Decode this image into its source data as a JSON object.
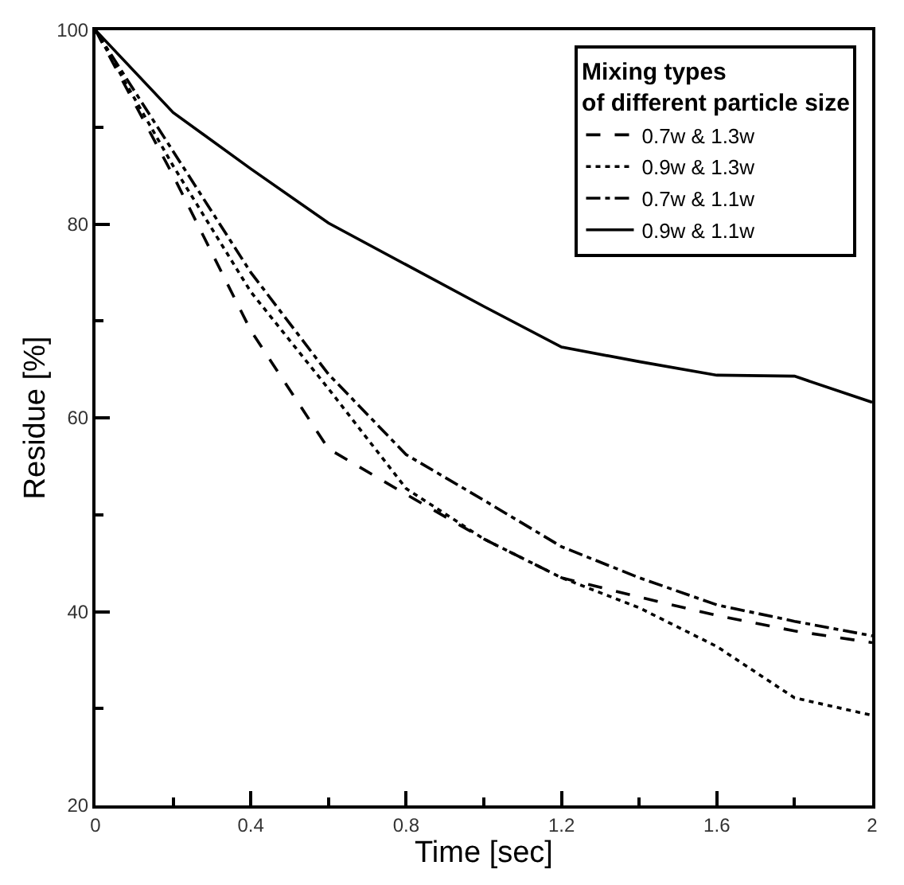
{
  "chart_data": {
    "type": "line",
    "xlabel": "Time [sec]",
    "ylabel": "Residue [%]",
    "legend_title": "Mixing types\nof different particle size",
    "x": [
      0,
      0.2,
      0.4,
      0.6,
      0.8,
      1.0,
      1.2,
      1.4,
      1.6,
      1.8,
      2.0
    ],
    "series": [
      {
        "name": "0.7w & 1.3w",
        "color": "#000000",
        "line_style": "dashed",
        "values": [
          100,
          85,
          69,
          56.8,
          52.1,
          47.5,
          43.5,
          41.5,
          39.6,
          38,
          36.8
        ]
      },
      {
        "name": "0.9w & 1.3w",
        "color": "#000000",
        "line_style": "dotted",
        "values": [
          100,
          86,
          73,
          63,
          52.7,
          47.5,
          43.5,
          40.4,
          36.4,
          31.1,
          29.3
        ]
      },
      {
        "name": "0.7w & 1.1w",
        "color": "#000000",
        "line_style": "dashdot",
        "values": [
          100,
          87.5,
          75,
          64.5,
          56.2,
          51.5,
          46.7,
          43.5,
          40.7,
          39,
          37.5
        ]
      },
      {
        "name": "0.9w & 1.1w",
        "color": "#000000",
        "line_style": "solid",
        "values": [
          100,
          91.5,
          85.7,
          80.1,
          75.8,
          71.5,
          67.3,
          65.8,
          64.4,
          64.3,
          61.6
        ]
      }
    ],
    "xlim": [
      0,
      2
    ],
    "ylim": [
      20,
      100
    ],
    "xticks": [
      0,
      {
        "value": 0.2,
        "label": null
      },
      0.4,
      {
        "value": 0.6,
        "label": null
      },
      0.8,
      {
        "value": 1.0,
        "label": null
      },
      1.2,
      {
        "value": 1.4,
        "label": null
      },
      1.6,
      {
        "value": 1.8,
        "label": null
      },
      2
    ],
    "yticks": [
      20,
      {
        "value": 30,
        "label": null
      },
      40,
      {
        "value": 50,
        "label": null
      },
      60,
      {
        "value": 70,
        "label": null
      },
      80,
      {
        "value": 90,
        "label": null
      },
      100
    ],
    "grid": false,
    "legend": "top right",
    "marker": "none"
  }
}
